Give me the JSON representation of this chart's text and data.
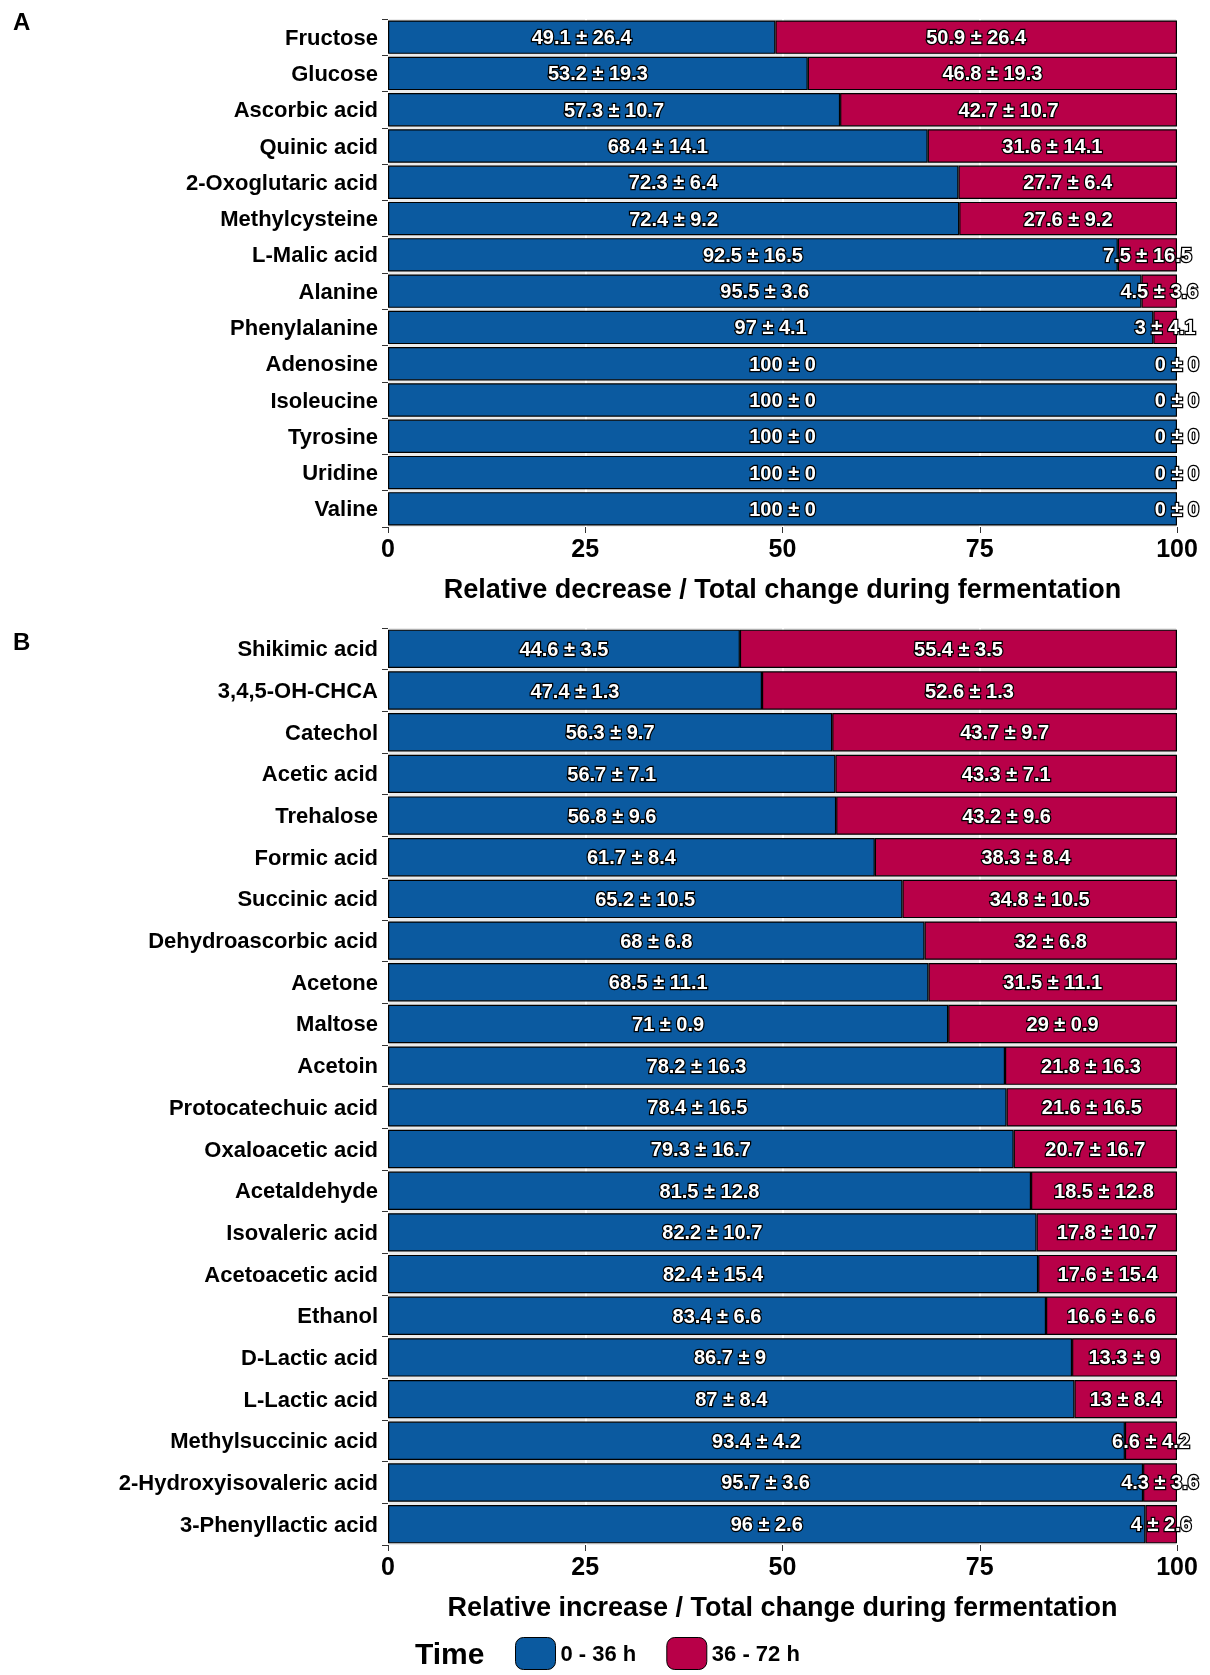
{
  "chart_data": [
    {
      "type": "bar",
      "annotations": [
        "A"
      ],
      "orientation": "horizontal",
      "stacked": true,
      "xlabel": "Relative decrease / Total change during fermentation",
      "xlim": [
        0,
        100
      ],
      "xticks": [
        0,
        25,
        50,
        75,
        100
      ],
      "grid": "x",
      "legend": false,
      "categories": [
        "Fructose",
        "Glucose",
        "Ascorbic acid",
        "Quinic acid",
        "2-Oxoglutaric acid",
        "Methylcysteine",
        "L-Malic acid",
        "Alanine",
        "Phenylalanine",
        "Adenosine",
        "Isoleucine",
        "Tyrosine",
        "Uridine",
        "Valine"
      ],
      "series": [
        {
          "color": "#0b5aa0",
          "values": [
            49.1,
            53.2,
            57.3,
            68.4,
            72.3,
            72.4,
            92.5,
            95.5,
            97,
            100,
            100,
            100,
            100,
            100
          ],
          "value_labels": [
            "49.1 ± 26.4",
            "53.2 ± 19.3",
            "57.3 ± 10.7",
            "68.4 ± 14.1",
            "72.3 ± 6.4",
            "72.4 ± 9.2",
            "92.5 ± 16.5",
            "95.5 ± 3.6",
            "97 ± 4.1",
            "100 ± 0",
            "100 ± 0",
            "100 ± 0",
            "100 ± 0",
            "100 ± 0"
          ]
        },
        {
          "color": "#b80048",
          "values": [
            50.9,
            46.8,
            42.7,
            31.6,
            27.7,
            27.6,
            7.5,
            4.5,
            3,
            0,
            0,
            0,
            0,
            0
          ],
          "value_labels": [
            "50.9 ± 26.4",
            "46.8 ± 19.3",
            "42.7 ± 10.7",
            "31.6 ± 14.1",
            "27.7 ± 6.4",
            "27.6 ± 9.2",
            "7.5 ± 16.5",
            "4.5 ± 3.6",
            "3 ± 4.1",
            "0 ± 0",
            "0 ± 0",
            "0 ± 0",
            "0 ± 0",
            "0 ± 0"
          ]
        }
      ]
    },
    {
      "type": "bar",
      "annotations": [
        "B"
      ],
      "orientation": "horizontal",
      "stacked": true,
      "xlabel": "Relative increase / Total change during fermentation",
      "xlim": [
        0,
        100
      ],
      "xticks": [
        0,
        25,
        50,
        75,
        100
      ],
      "grid": "x",
      "legend": "bottom",
      "legend_title": "Time",
      "categories": [
        "Shikimic acid",
        "3,4,5-OH-CHCA",
        "Catechol",
        "Acetic acid",
        "Trehalose",
        "Formic acid",
        "Succinic acid",
        "Dehydroascorbic acid",
        "Acetone",
        "Maltose",
        "Acetoin",
        "Protocatechuic acid",
        "Oxaloacetic acid",
        "Acetaldehyde",
        "Isovaleric acid",
        "Acetoacetic acid",
        "Ethanol",
        "D-Lactic acid",
        "L-Lactic acid",
        "Methylsuccinic acid",
        "2-Hydroxyisovaleric acid",
        "3-Phenyllactic acid"
      ],
      "series": [
        {
          "name": "0 - 36 h",
          "color": "#0b5aa0",
          "values": [
            44.6,
            47.4,
            56.3,
            56.7,
            56.8,
            61.7,
            65.2,
            68,
            68.5,
            71,
            78.2,
            78.4,
            79.3,
            81.5,
            82.2,
            82.4,
            83.4,
            86.7,
            87,
            93.4,
            95.7,
            96
          ],
          "value_labels": [
            "44.6 ± 3.5",
            "47.4 ± 1.3",
            "56.3 ± 9.7",
            "56.7 ± 7.1",
            "56.8 ± 9.6",
            "61.7 ± 8.4",
            "65.2 ± 10.5",
            "68 ± 6.8",
            "68.5 ± 11.1",
            "71 ± 0.9",
            "78.2 ± 16.3",
            "78.4 ± 16.5",
            "79.3 ± 16.7",
            "81.5 ± 12.8",
            "82.2 ± 10.7",
            "82.4 ± 15.4",
            "83.4 ± 6.6",
            "86.7 ± 9",
            "87 ± 8.4",
            "93.4 ± 4.2",
            "95.7 ± 3.6",
            "96 ± 2.6"
          ]
        },
        {
          "name": "36 - 72 h",
          "color": "#b80048",
          "values": [
            55.4,
            52.6,
            43.7,
            43.3,
            43.2,
            38.3,
            34.8,
            32,
            31.5,
            29,
            21.8,
            21.6,
            20.7,
            18.5,
            17.8,
            17.6,
            16.6,
            13.3,
            13,
            6.6,
            4.3,
            4
          ],
          "value_labels": [
            "55.4 ± 3.5",
            "52.6 ± 1.3",
            "43.7 ± 9.7",
            "43.3 ± 7.1",
            "43.2 ± 9.6",
            "38.3 ± 8.4",
            "34.8 ± 10.5",
            "32 ± 6.8",
            "31.5 ± 11.1",
            "29 ± 0.9",
            "21.8 ± 16.3",
            "21.6 ± 16.5",
            "20.7 ± 16.7",
            "18.5 ± 12.8",
            "17.8 ± 10.7",
            "17.6 ± 15.4",
            "16.6 ± 6.6",
            "13.3 ± 9",
            "13 ± 8.4",
            "6.6 ± 4.2",
            "4.3 ± 3.6",
            "4 ± 2.6"
          ]
        }
      ]
    }
  ]
}
